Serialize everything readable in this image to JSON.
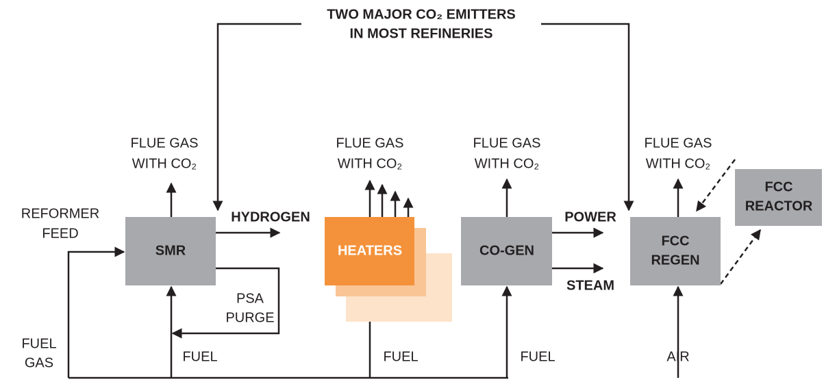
{
  "title": {
    "lines": [
      "TWO MAJOR CO₂ EMITTERS",
      "IN MOST REFINERIES"
    ]
  },
  "nodes": [
    {
      "id": "smr",
      "lines": [
        "SMR"
      ]
    },
    {
      "id": "heaters",
      "lines": [
        "HEATERS"
      ]
    },
    {
      "id": "cogen",
      "lines": [
        "CO-GEN"
      ]
    },
    {
      "id": "fccregen",
      "lines": [
        "FCC",
        "REGEN"
      ]
    },
    {
      "id": "fccreactor",
      "lines": [
        "FCC",
        "REACTOR"
      ]
    }
  ],
  "flue_gas": [
    {
      "lines": [
        "FLUE GAS",
        "WITH CO₂"
      ]
    },
    {
      "lines": [
        "FLUE GAS",
        "WITH CO₂"
      ]
    },
    {
      "lines": [
        "FLUE GAS",
        "WITH CO₂"
      ]
    },
    {
      "lines": [
        "FLUE GAS",
        "WITH CO₂"
      ]
    }
  ],
  "streams": {
    "reformer_feed": [
      "REFORMER",
      "FEED"
    ],
    "hydrogen": "HYDROGEN",
    "psa_purge": [
      "PSA",
      "PURGE"
    ],
    "fuel_gas": [
      "FUEL",
      "GAS"
    ],
    "fuel": [
      "FUEL",
      "FUEL",
      "FUEL"
    ],
    "power": "POWER",
    "steam": "STEAM",
    "air": "AIR"
  }
}
